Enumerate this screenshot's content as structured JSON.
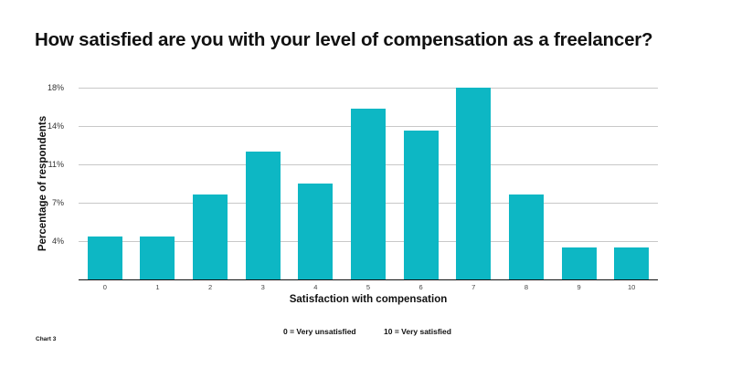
{
  "title": "How satisfied are you with your level of compensation as a freelancer?",
  "caption": "Chart 3",
  "legend_notes": [
    "0 = Very unsatisfied",
    "10 = Very satisfied"
  ],
  "colors": {
    "bar": "#0db7c4",
    "grid": "#c8c8c8",
    "axis": "#111111"
  },
  "chart_data": {
    "type": "bar",
    "title": "How satisfied are you with your level of compensation as a freelancer?",
    "xlabel": "Satisfaction with compensation",
    "ylabel": "Percentage of respondents",
    "categories": [
      "0",
      "1",
      "2",
      "3",
      "4",
      "5",
      "6",
      "7",
      "8",
      "9",
      "10"
    ],
    "values": [
      4,
      4,
      8,
      12,
      9,
      16,
      14,
      18,
      8,
      3,
      3
    ],
    "unit": "%",
    "ylim": [
      0,
      18
    ],
    "ytick_values": [
      3.6,
      7.2,
      10.8,
      14.4,
      18
    ],
    "ytick_labels": [
      "4%",
      "7%",
      "11%",
      "14%",
      "18%"
    ],
    "grid": true,
    "legend": null,
    "annotations": [
      "0 = Very unsatisfied",
      "10 = Very satisfied"
    ]
  }
}
